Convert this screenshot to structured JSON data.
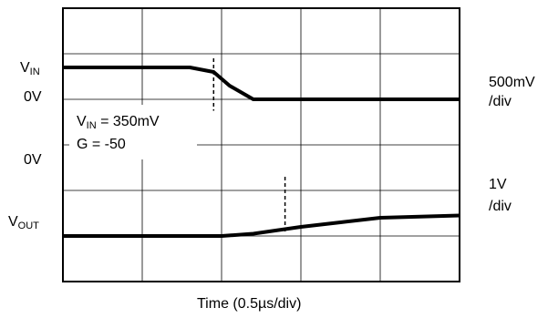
{
  "chart_data": {
    "type": "line",
    "xlabel": "Time (0.5µs/div)",
    "grid": true,
    "divisions": {
      "x": 5,
      "y": 6
    },
    "channels": [
      {
        "name": "VIN",
        "scale": "500mV /div",
        "zero_label": "0V",
        "x_div": [
          0,
          1,
          1.6,
          1.9,
          2.1,
          2.4,
          2.7,
          3,
          4,
          5
        ],
        "y_div": [
          0.7,
          0.7,
          0.7,
          0.6,
          0.3,
          0.0,
          0.0,
          0.0,
          0.0,
          0.0
        ]
      },
      {
        "name": "VOUT",
        "scale": "1V /div",
        "zero_label": "0V",
        "x_div": [
          0,
          1,
          2,
          2.4,
          3,
          3.5,
          4,
          5
        ],
        "y_div": [
          -3.0,
          -3.0,
          -3.0,
          -2.95,
          -2.8,
          -2.7,
          -2.6,
          -2.55
        ]
      }
    ],
    "labels": {
      "vin_letter": "V",
      "vin_sub": "IN",
      "vout_letter": "V",
      "vout_sub": "OUT",
      "zero_top": "0V",
      "zero_bottom": "0V",
      "scale_top_1": "500mV",
      "scale_top_2": "/div",
      "scale_bot_1": "1V",
      "scale_bot_2": "/div",
      "ann_line1_pre": "V",
      "ann_line1_sub": "IN",
      "ann_line1_post": " = 350mV",
      "ann_line2": "G = -50"
    },
    "markers_x_div": [
      1.9,
      2.8
    ]
  }
}
